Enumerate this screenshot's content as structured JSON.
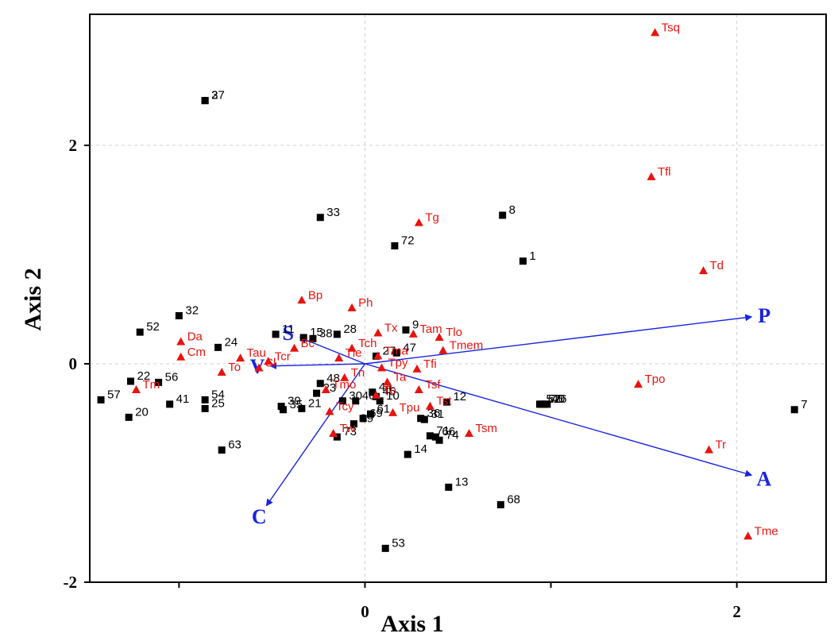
{
  "chart_data": {
    "type": "scatter",
    "subtype": "ordination-biplot",
    "xlabel": "Axis 1",
    "ylabel": "Axis 2",
    "xlim": [
      -1.48,
      2.48
    ],
    "ylim": [
      -2.0,
      3.2
    ],
    "xticks": [
      {
        "value": 0,
        "label": "0"
      },
      {
        "value": 2,
        "label": "2"
      }
    ],
    "yticks": [
      {
        "value": -2,
        "label": "-2"
      },
      {
        "value": 0,
        "label": "0"
      },
      {
        "value": 2,
        "label": "2"
      }
    ],
    "grid": "dashed",
    "colors": {
      "sites": "#000000",
      "species": "#e8130e",
      "vectors": "#1a24e0"
    },
    "sites": [
      {
        "label": "1",
        "x": 0.85,
        "y": 0.94
      },
      {
        "label": "2",
        "x": -0.86,
        "y": 2.41
      },
      {
        "label": "37",
        "x": -0.86,
        "y": 2.41
      },
      {
        "label": "5",
        "x": 0.94,
        "y": -0.37
      },
      {
        "label": "7",
        "x": 2.31,
        "y": -0.42
      },
      {
        "label": "8",
        "x": 0.74,
        "y": 1.36
      },
      {
        "label": "9",
        "x": 0.22,
        "y": 0.31
      },
      {
        "label": "11",
        "x": -0.48,
        "y": 0.27
      },
      {
        "label": "12",
        "x": 0.44,
        "y": -0.35
      },
      {
        "label": "13",
        "x": 0.45,
        "y": -1.13
      },
      {
        "label": "14",
        "x": 0.23,
        "y": -0.83
      },
      {
        "label": "15",
        "x": -0.33,
        "y": 0.24
      },
      {
        "label": "20",
        "x": -1.27,
        "y": -0.49
      },
      {
        "label": "21",
        "x": -0.34,
        "y": -0.41
      },
      {
        "label": "22",
        "x": -1.26,
        "y": -0.16
      },
      {
        "label": "23",
        "x": -0.26,
        "y": -0.27
      },
      {
        "label": "24",
        "x": -0.79,
        "y": 0.15
      },
      {
        "label": "25",
        "x": -0.86,
        "y": -0.41
      },
      {
        "label": "26",
        "x": 0.98,
        "y": -0.37
      },
      {
        "label": "27",
        "x": 0.06,
        "y": 0.07
      },
      {
        "label": "28",
        "x": -0.15,
        "y": 0.27
      },
      {
        "label": "29",
        "x": -0.06,
        "y": -0.55
      },
      {
        "label": "30",
        "x": -0.12,
        "y": -0.34
      },
      {
        "label": "31",
        "x": 0.32,
        "y": -0.51
      },
      {
        "label": "32",
        "x": -1.0,
        "y": 0.44
      },
      {
        "label": "33",
        "x": -0.24,
        "y": 1.34
      },
      {
        "label": "35",
        "x": -0.44,
        "y": -0.42
      },
      {
        "label": "36",
        "x": 0.3,
        "y": -0.5
      },
      {
        "label": "38",
        "x": -0.28,
        "y": 0.23
      },
      {
        "label": "39",
        "x": -0.45,
        "y": -0.39
      },
      {
        "label": "40",
        "x": 0.97,
        "y": -0.37
      },
      {
        "label": "41",
        "x": -1.05,
        "y": -0.37
      },
      {
        "label": "45",
        "x": 0.06,
        "y": -0.3
      },
      {
        "label": "46",
        "x": -0.05,
        "y": -0.34
      },
      {
        "label": "47",
        "x": 0.17,
        "y": 0.1
      },
      {
        "label": "48",
        "x": -0.24,
        "y": -0.18
      },
      {
        "label": "52",
        "x": -1.21,
        "y": 0.29
      },
      {
        "label": "53",
        "x": 0.11,
        "y": -1.69
      },
      {
        "label": "54",
        "x": -0.86,
        "y": -0.33
      },
      {
        "label": "56",
        "x": -1.11,
        "y": -0.17
      },
      {
        "label": "57",
        "x": -1.42,
        "y": -0.33
      },
      {
        "label": "61",
        "x": 0.03,
        "y": -0.46
      },
      {
        "label": "63",
        "x": -0.77,
        "y": -0.79
      },
      {
        "label": "66",
        "x": 0.38,
        "y": -0.67
      },
      {
        "label": "67",
        "x": 0.95,
        "y": -0.37
      },
      {
        "label": "68",
        "x": 0.73,
        "y": -1.29
      },
      {
        "label": "69",
        "x": -0.01,
        "y": -0.5
      },
      {
        "label": "71",
        "x": 0.35,
        "y": -0.66
      },
      {
        "label": "72",
        "x": 0.16,
        "y": 1.08
      },
      {
        "label": "73",
        "x": -0.15,
        "y": -0.67
      },
      {
        "label": "74",
        "x": 0.4,
        "y": -0.7
      },
      {
        "label": "75",
        "x": 0.96,
        "y": -0.37
      },
      {
        "label": "10",
        "x": 0.08,
        "y": -0.34
      },
      {
        "label": "44",
        "x": 0.04,
        "y": -0.26
      }
    ],
    "species": [
      {
        "label": "Tsq",
        "x": 1.56,
        "y": 3.03
      },
      {
        "label": "Tfl",
        "x": 1.54,
        "y": 1.71
      },
      {
        "label": "Td",
        "x": 1.82,
        "y": 0.85
      },
      {
        "label": "Tg",
        "x": 0.29,
        "y": 1.29
      },
      {
        "label": "Bp",
        "x": -0.34,
        "y": 0.58
      },
      {
        "label": "Ph",
        "x": -0.07,
        "y": 0.51
      },
      {
        "label": "Da",
        "x": -0.99,
        "y": 0.2
      },
      {
        "label": "Cm",
        "x": -0.99,
        "y": 0.06
      },
      {
        "label": "Tau",
        "x": -0.67,
        "y": 0.05
      },
      {
        "label": "Tcr",
        "x": -0.52,
        "y": 0.02
      },
      {
        "label": "To",
        "x": -0.77,
        "y": -0.08
      },
      {
        "label": "Sl",
        "x": -0.57,
        "y": -0.04
      },
      {
        "label": "Bc",
        "x": -0.38,
        "y": 0.14
      },
      {
        "label": "Tch",
        "x": -0.07,
        "y": 0.14
      },
      {
        "label": "Tx",
        "x": 0.07,
        "y": 0.28
      },
      {
        "label": "Tma",
        "x": 0.07,
        "y": 0.07
      },
      {
        "label": "Tam",
        "x": 0.26,
        "y": 0.27
      },
      {
        "label": "Tlo",
        "x": 0.4,
        "y": 0.24
      },
      {
        "label": "Tmem",
        "x": 0.42,
        "y": 0.12
      },
      {
        "label": "Tle",
        "x": -0.14,
        "y": 0.05
      },
      {
        "label": "Tpy",
        "x": 0.09,
        "y": -0.04
      },
      {
        "label": "Tfi",
        "x": 0.28,
        "y": -0.05
      },
      {
        "label": "Tn",
        "x": -0.11,
        "y": -0.13
      },
      {
        "label": "Ta",
        "x": 0.12,
        "y": -0.17
      },
      {
        "label": "Tmo",
        "x": -0.21,
        "y": -0.24
      },
      {
        "label": "Tsf",
        "x": 0.29,
        "y": -0.24
      },
      {
        "label": "Tst",
        "x": 0.35,
        "y": -0.39
      },
      {
        "label": "Tcy",
        "x": -0.19,
        "y": -0.44
      },
      {
        "label": "Tpu",
        "x": 0.15,
        "y": -0.45
      },
      {
        "label": "Tw",
        "x": -0.17,
        "y": -0.64
      },
      {
        "label": "Tsm",
        "x": 0.56,
        "y": -0.64
      },
      {
        "label": "Tm",
        "x": -1.23,
        "y": -0.24
      },
      {
        "label": "Tpo",
        "x": 1.47,
        "y": -0.19
      },
      {
        "label": "Tr",
        "x": 1.85,
        "y": -0.79
      },
      {
        "label": "Tme",
        "x": 2.06,
        "y": -1.58
      },
      {
        "label": "Tb",
        "x": 0.06,
        "y": -0.29
      }
    ],
    "vectors": [
      {
        "label": "P",
        "x": 2.08,
        "y": 0.43
      },
      {
        "label": "A",
        "x": 2.08,
        "y": -1.02
      },
      {
        "label": "S",
        "x": -0.35,
        "y": 0.24
      },
      {
        "label": "V",
        "x": -0.51,
        "y": -0.02
      },
      {
        "label": "C",
        "x": -0.53,
        "y": -1.3
      }
    ]
  }
}
